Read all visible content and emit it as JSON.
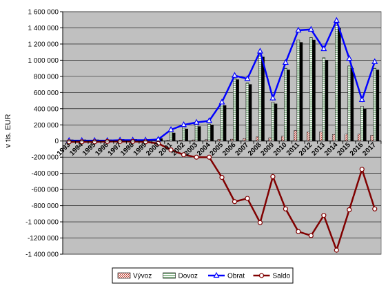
{
  "chart_data": {
    "type": "bar",
    "title": "",
    "xlabel": "",
    "ylabel": "v tis. EUR",
    "ylim": [
      -1400000,
      1600000
    ],
    "yticks": [
      1600000,
      1400000,
      1200000,
      1000000,
      800000,
      600000,
      400000,
      200000,
      0,
      -200000,
      -400000,
      -600000,
      -800000,
      -1000000,
      -1200000,
      -1400000
    ],
    "ytick_labels": [
      "1 600 000",
      "1 400 000",
      "1 200 000",
      "1 000 000",
      "800 000",
      "600 000",
      "400 000",
      "200 000",
      "0",
      "-200 000",
      "-400 000",
      "-600 000",
      "-800 000",
      "-1 000 000",
      "-1200 000",
      "-1 400 000"
    ],
    "categories": [
      "1993",
      "1994",
      "1995",
      "1996",
      "1997",
      "1998",
      "1999",
      "2000",
      "2001",
      "2002",
      "2003",
      "2004",
      "2005",
      "2006",
      "2007",
      "2008",
      "2009",
      "2010",
      "2011",
      "2012",
      "2013",
      "2014",
      "2015",
      "2016",
      "2017"
    ],
    "grid": true,
    "legend_position": "bottom",
    "series": [
      {
        "name": "Vývoz",
        "kind": "bar",
        "pattern": "diagonal",
        "color": "#c0392b",
        "values": [
          2000,
          3000,
          4000,
          4000,
          5000,
          5000,
          5000,
          8000,
          10000,
          12000,
          14000,
          16000,
          20000,
          22000,
          30000,
          50000,
          40000,
          60000,
          130000,
          110000,
          115000,
          80000,
          85000,
          85000,
          70000
        ]
      },
      {
        "name": "Dovoz",
        "kind": "bar",
        "pattern": "horizontal",
        "color": "#2e7d32",
        "values": [
          15000,
          15000,
          15000,
          15000,
          20000,
          20000,
          20000,
          30000,
          120000,
          170000,
          200000,
          210000,
          460000,
          780000,
          720000,
          1060000,
          480000,
          900000,
          1250000,
          1280000,
          1030000,
          1430000,
          930000,
          430000,
          900000
        ]
      },
      {
        "name": "Dovoz",
        "kind": "bar",
        "pattern": "solid",
        "color": "#000000",
        "legend": false,
        "values": [
          15000,
          15000,
          15000,
          15000,
          20000,
          20000,
          20000,
          30000,
          100000,
          150000,
          180000,
          200000,
          440000,
          760000,
          700000,
          1040000,
          460000,
          880000,
          1220000,
          1250000,
          1000000,
          1400000,
          900000,
          400000,
          880000
        ]
      },
      {
        "name": "Obrat",
        "kind": "line",
        "marker": "triangle",
        "color": "#0000ff",
        "values": [
          5000,
          5000,
          5000,
          5000,
          10000,
          10000,
          10000,
          20000,
          140000,
          200000,
          230000,
          250000,
          480000,
          810000,
          770000,
          1110000,
          530000,
          970000,
          1370000,
          1380000,
          1140000,
          1490000,
          1020000,
          510000,
          980000
        ]
      },
      {
        "name": "Saldo",
        "kind": "line",
        "marker": "circle",
        "color": "#800000",
        "values": [
          -10000,
          -10000,
          -10000,
          -5000,
          -5000,
          -5000,
          -10000,
          -30000,
          -110000,
          -170000,
          -200000,
          -200000,
          -450000,
          -750000,
          -710000,
          -1010000,
          -440000,
          -840000,
          -1120000,
          -1170000,
          -920000,
          -1350000,
          -850000,
          -350000,
          -840000
        ]
      }
    ]
  }
}
